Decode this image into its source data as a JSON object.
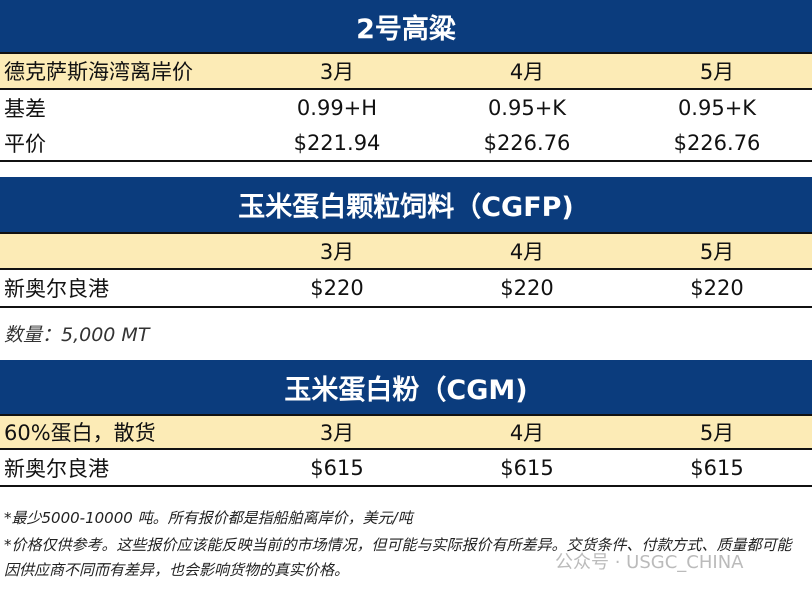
{
  "months": [
    "3月",
    "4月",
    "5月"
  ],
  "sorghum": {
    "title": "2号高粱",
    "header_label": "德克萨斯海湾离岸价",
    "rows": [
      {
        "label": "基差",
        "values": [
          "0.99+H",
          "0.95+K",
          "0.95+K"
        ]
      },
      {
        "label": "平价",
        "values": [
          "$221.94",
          "$226.76",
          "$226.76"
        ]
      }
    ]
  },
  "cgfp": {
    "title": "玉米蛋白颗粒饲料（CGFP)",
    "header_label": "",
    "rows": [
      {
        "label": "新奥尔良港",
        "values": [
          "$220",
          "$220",
          "$220"
        ]
      }
    ],
    "note": "数量：5,000 MT"
  },
  "cgm": {
    "title": "玉米蛋白粉（CGM)",
    "header_label": "60%蛋白，散货",
    "rows": [
      {
        "label": "新奥尔良港",
        "values": [
          "$615",
          "$615",
          "$615"
        ]
      }
    ]
  },
  "footnotes": [
    "*最少5000-10000 吨。所有报价都是指船舶离岸价，美元/吨",
    "*价格仅供参考。这些报价应该能反映当前的市场情况，但可能与实际报价有所差异。交货条件、付款方式、质量都可能因供应商不同而有差异，也会影响货物的真实价格。"
  ],
  "watermark": "公众号 · USGC_CHINA",
  "colors": {
    "header": "#0b3c7d",
    "subheader": "#fcebb6"
  }
}
